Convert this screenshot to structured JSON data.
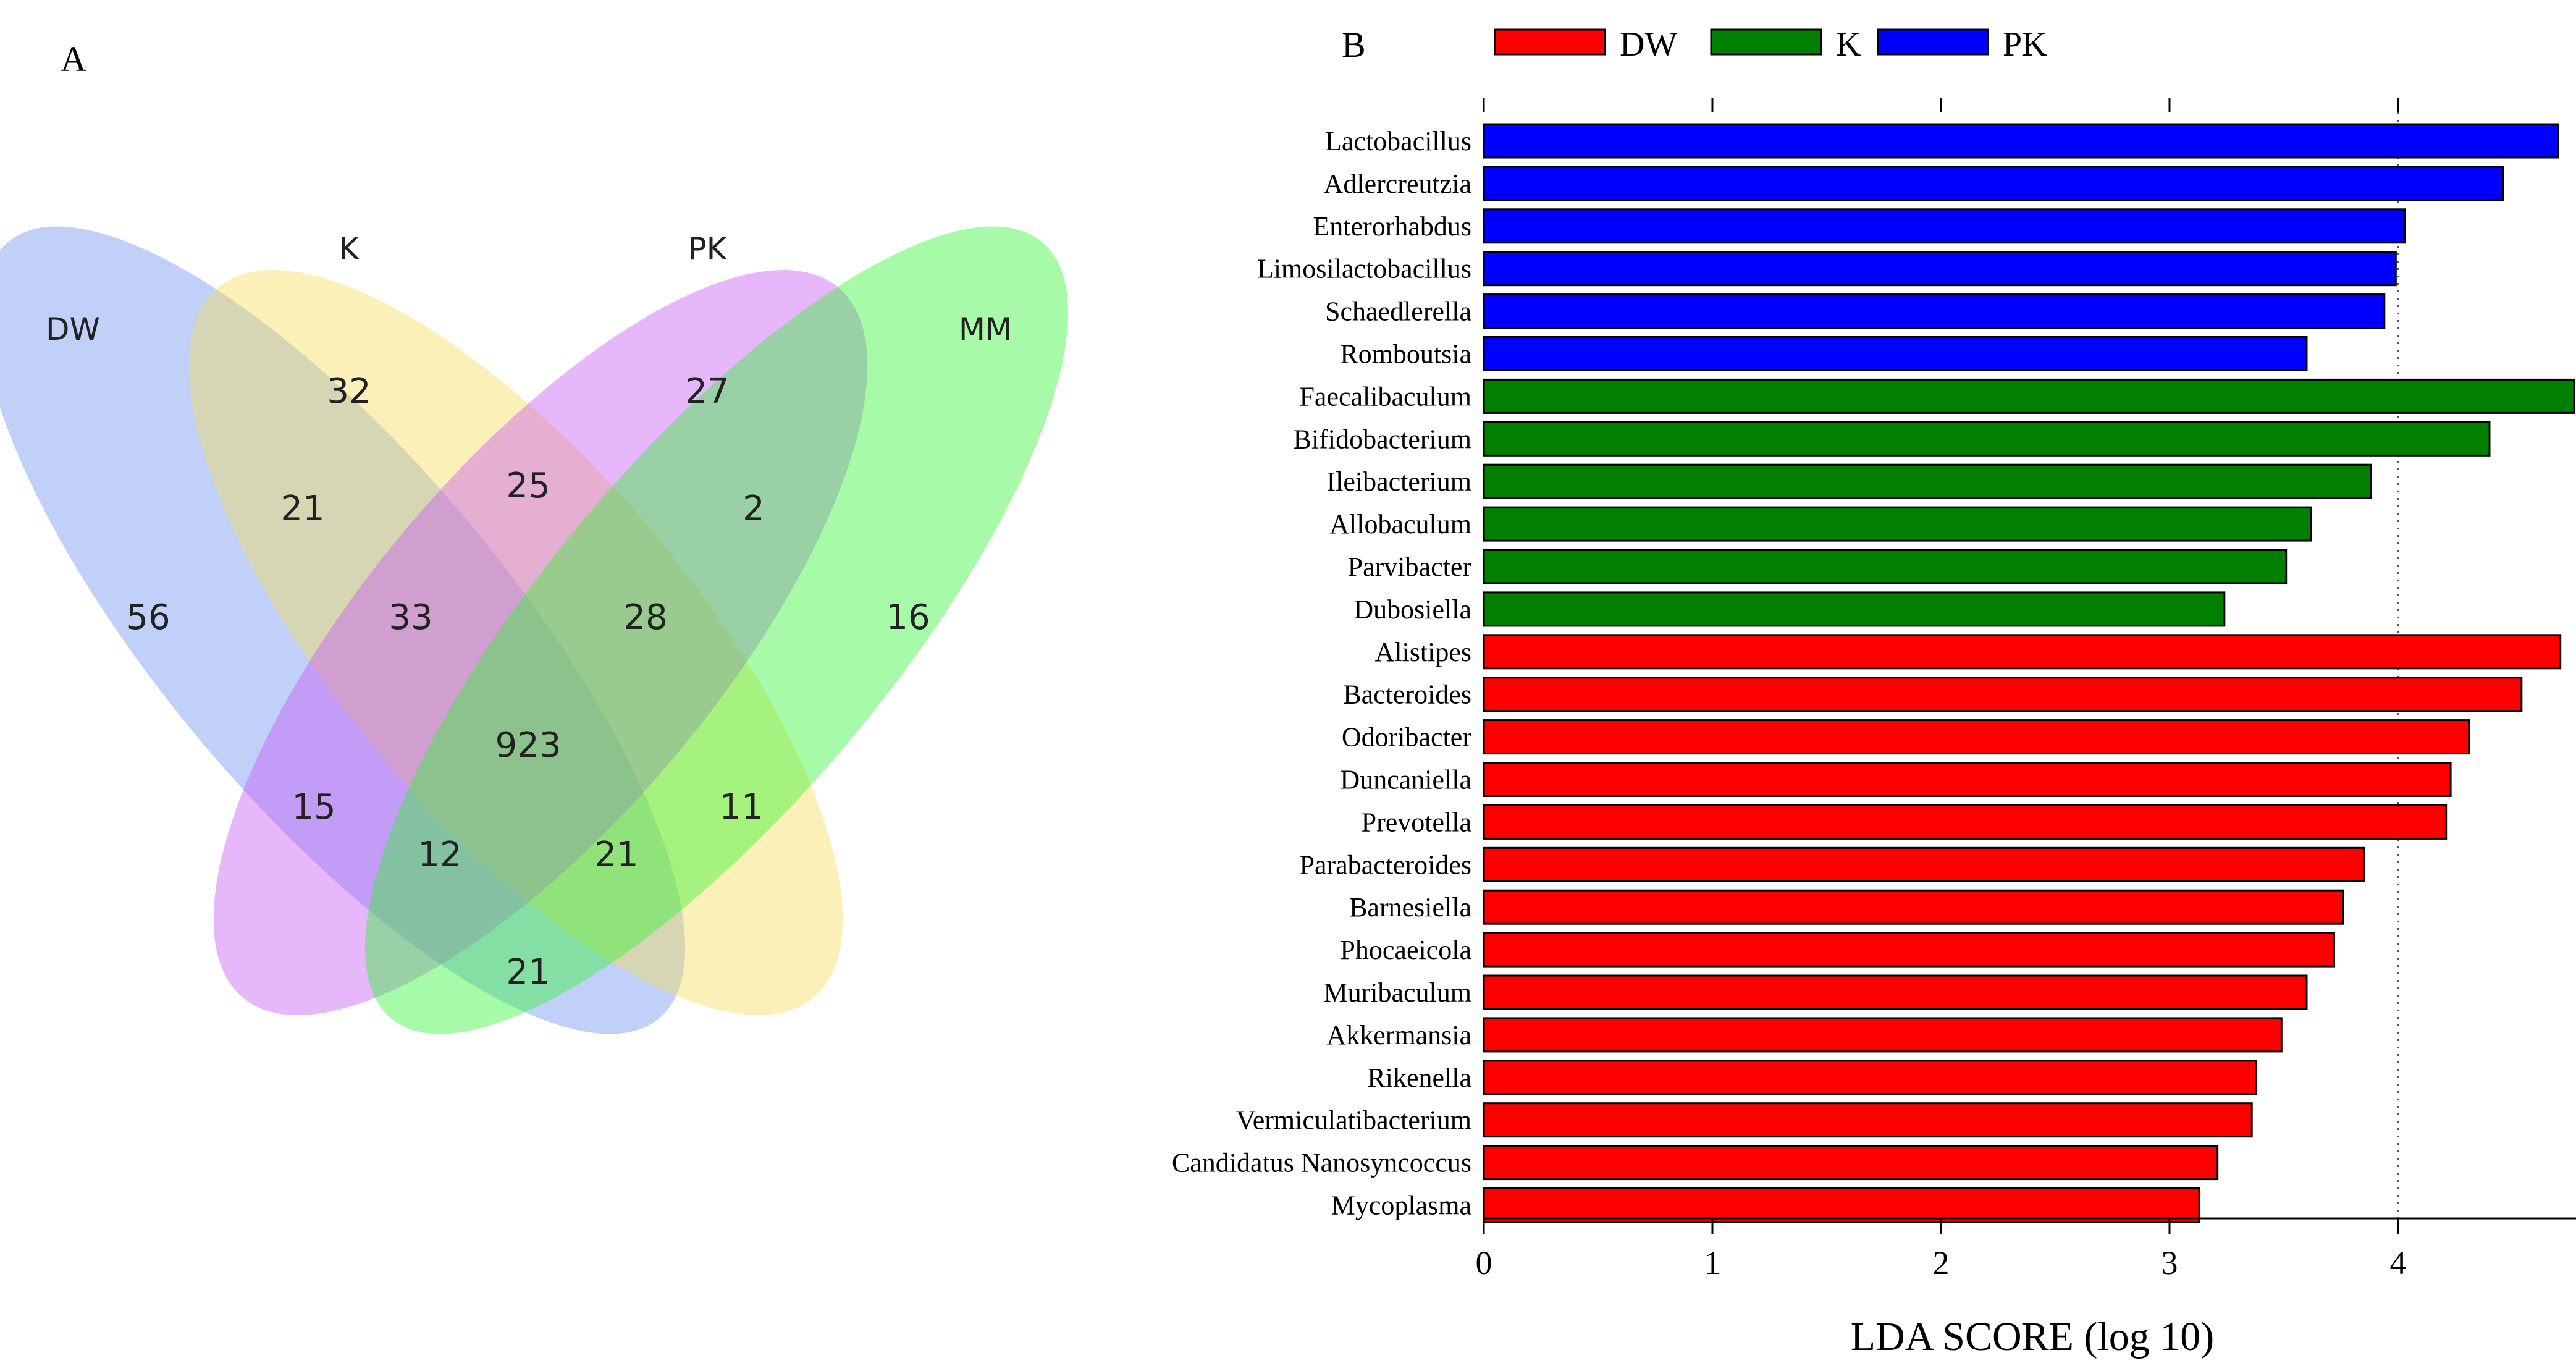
{
  "panel_a": {
    "letter": "A",
    "sets": [
      {
        "name": "DW",
        "color": "#6c8ff0"
      },
      {
        "name": "K",
        "color": "#f6de55"
      },
      {
        "name": "PK",
        "color": "#c654f5"
      },
      {
        "name": "MM",
        "color": "#2ef42e"
      }
    ],
    "regions": [
      {
        "sets": [
          "DW"
        ],
        "count": "56"
      },
      {
        "sets": [
          "K"
        ],
        "count": "32"
      },
      {
        "sets": [
          "PK"
        ],
        "count": "27"
      },
      {
        "sets": [
          "MM"
        ],
        "count": "16"
      },
      {
        "sets": [
          "DW",
          "K"
        ],
        "count": "21"
      },
      {
        "sets": [
          "K",
          "PK"
        ],
        "count": "25"
      },
      {
        "sets": [
          "PK",
          "MM"
        ],
        "count": "2"
      },
      {
        "sets": [
          "DW",
          "K",
          "PK"
        ],
        "count": "33"
      },
      {
        "sets": [
          "K",
          "PK",
          "MM"
        ],
        "count": "28"
      },
      {
        "sets": [
          "DW",
          "K",
          "PK",
          "MM"
        ],
        "count": "923"
      },
      {
        "sets": [
          "DW",
          "PK"
        ],
        "count": "15"
      },
      {
        "sets": [
          "K",
          "MM"
        ],
        "count": "11"
      },
      {
        "sets": [
          "DW",
          "PK",
          "MM"
        ],
        "count": "12"
      },
      {
        "sets": [
          "DW",
          "K",
          "MM"
        ],
        "count": "21"
      },
      {
        "sets": [
          "DW",
          "MM"
        ],
        "count": "21"
      }
    ]
  },
  "chart_data": {
    "type": "bar",
    "orientation": "horizontal",
    "panel_letter": "B",
    "xlabel": "LDA SCORE (log 10)",
    "xlim": [
      0,
      4.8
    ],
    "xticks": [
      "0",
      "1",
      "2",
      "3",
      "4"
    ],
    "reference_line": 4,
    "legend": {
      "placement": "top",
      "entries": [
        {
          "name": "DW",
          "color": "#ff0000"
        },
        {
          "name": "K",
          "color": "#007f00"
        },
        {
          "name": "PK",
          "color": "#0000ff"
        }
      ]
    },
    "bars": [
      {
        "category": "Lactobacillus",
        "group": "PK",
        "value": 4.7
      },
      {
        "category": "Adlercreutzia",
        "group": "PK",
        "value": 4.46
      },
      {
        "category": "Enterorhabdus",
        "group": "PK",
        "value": 4.03
      },
      {
        "category": "Limosilactobacillus",
        "group": "PK",
        "value": 3.99
      },
      {
        "category": "Schaedlerella",
        "group": "PK",
        "value": 3.94
      },
      {
        "category": "Romboutsia",
        "group": "PK",
        "value": 3.6
      },
      {
        "category": "Faecalibaculum",
        "group": "K",
        "value": 4.77
      },
      {
        "category": "Bifidobacterium",
        "group": "K",
        "value": 4.4
      },
      {
        "category": "Ileibacterium",
        "group": "K",
        "value": 3.88
      },
      {
        "category": "Allobaculum",
        "group": "K",
        "value": 3.62
      },
      {
        "category": "Parvibacter",
        "group": "K",
        "value": 3.51
      },
      {
        "category": "Dubosiella",
        "group": "K",
        "value": 3.24
      },
      {
        "category": "Alistipes",
        "group": "DW",
        "value": 4.71
      },
      {
        "category": "Bacteroides",
        "group": "DW",
        "value": 4.54
      },
      {
        "category": "Odoribacter",
        "group": "DW",
        "value": 4.31
      },
      {
        "category": "Duncaniella",
        "group": "DW",
        "value": 4.23
      },
      {
        "category": "Prevotella",
        "group": "DW",
        "value": 4.21
      },
      {
        "category": "Parabacteroides",
        "group": "DW",
        "value": 3.85
      },
      {
        "category": "Barnesiella",
        "group": "DW",
        "value": 3.76
      },
      {
        "category": "Phocaeicola",
        "group": "DW",
        "value": 3.72
      },
      {
        "category": "Muribaculum",
        "group": "DW",
        "value": 3.6
      },
      {
        "category": "Akkermansia",
        "group": "DW",
        "value": 3.49
      },
      {
        "category": "Rikenella",
        "group": "DW",
        "value": 3.38
      },
      {
        "category": "Vermiculatibacterium",
        "group": "DW",
        "value": 3.36
      },
      {
        "category": "Candidatus Nanosyncoccus",
        "group": "DW",
        "value": 3.21
      },
      {
        "category": "Mycoplasma",
        "group": "DW",
        "value": 3.13
      }
    ]
  }
}
